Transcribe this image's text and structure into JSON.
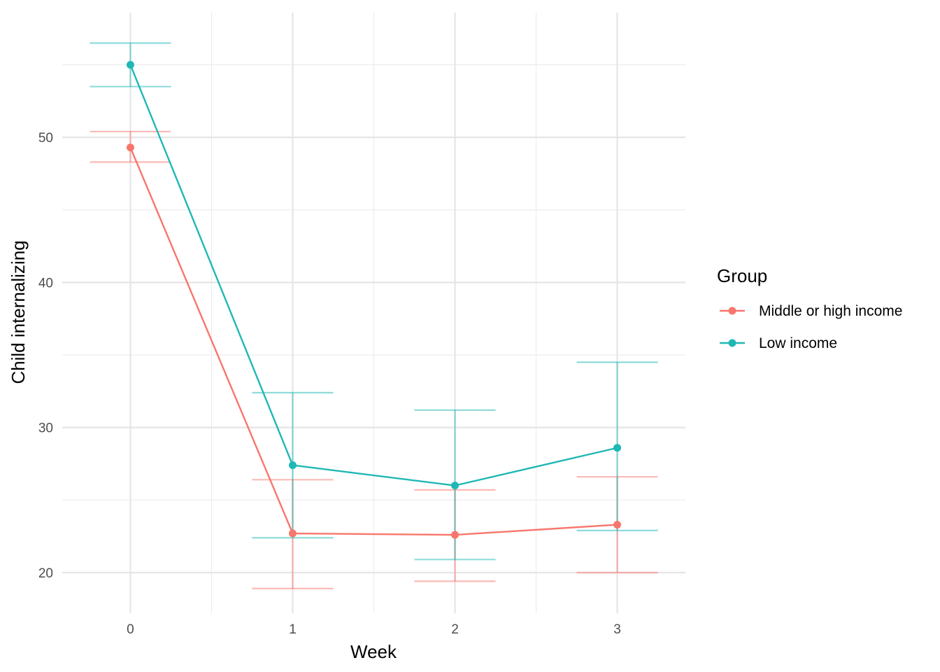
{
  "chart_data": {
    "type": "line",
    "xlabel": "Week",
    "ylabel": "Child internalizing",
    "x": [
      0,
      1,
      2,
      3
    ],
    "xlim": [
      -0.42,
      3.42
    ],
    "ylim": [
      17.2,
      58.6
    ],
    "xticks": [
      0,
      1,
      2,
      3
    ],
    "yticks": [
      20,
      30,
      40,
      50
    ],
    "grid": true,
    "legend": {
      "title": "Group",
      "placement": "right"
    },
    "series": [
      {
        "name": "Middle or high income",
        "color": "#F8766D",
        "values": [
          49.3,
          22.7,
          22.6,
          23.3
        ],
        "lower": [
          48.3,
          18.9,
          19.4,
          20.0
        ],
        "upper": [
          50.4,
          26.4,
          25.7,
          26.6
        ]
      },
      {
        "name": "Low income",
        "color": "#1FB8B5",
        "values": [
          55.0,
          27.4,
          26.0,
          28.6
        ],
        "lower": [
          53.5,
          22.4,
          20.9,
          22.9
        ],
        "upper": [
          56.5,
          32.4,
          31.2,
          34.5
        ]
      }
    ]
  }
}
